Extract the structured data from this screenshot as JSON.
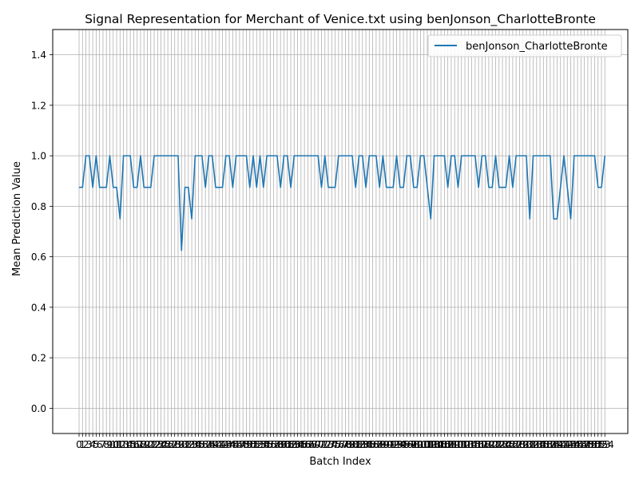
{
  "chart_data": {
    "type": "line",
    "title": "Signal Representation for Merchant of Venice.txt using benJonson_CharlotteBronte",
    "xlabel": "Batch Index",
    "ylabel": "Mean Prediction Value",
    "xlim": [
      0,
      153
    ],
    "ylim": [
      -0.1,
      1.5
    ],
    "yticks": [
      0.0,
      0.2,
      0.4,
      0.6,
      0.8,
      1.0,
      1.2,
      1.4
    ],
    "grid": true,
    "legend_position": "upper right",
    "series": [
      {
        "name": "benJonson_CharlotteBronte",
        "color": "#1f77b4",
        "values": [
          0.875,
          0.875,
          1.0,
          1.0,
          0.875,
          1.0,
          0.875,
          0.875,
          0.875,
          1.0,
          0.875,
          0.875,
          0.75,
          1.0,
          1.0,
          1.0,
          0.875,
          0.875,
          1.0,
          0.875,
          0.875,
          0.875,
          1.0,
          1.0,
          1.0,
          1.0,
          1.0,
          1.0,
          1.0,
          1.0,
          0.625,
          0.875,
          0.875,
          0.75,
          1.0,
          1.0,
          1.0,
          0.875,
          1.0,
          1.0,
          0.875,
          0.875,
          0.875,
          1.0,
          1.0,
          0.875,
          1.0,
          1.0,
          1.0,
          1.0,
          0.875,
          1.0,
          0.875,
          1.0,
          0.875,
          1.0,
          1.0,
          1.0,
          1.0,
          0.875,
          1.0,
          1.0,
          0.875,
          1.0,
          1.0,
          1.0,
          1.0,
          1.0,
          1.0,
          1.0,
          1.0,
          0.875,
          1.0,
          0.875,
          0.875,
          0.875,
          1.0,
          1.0,
          1.0,
          1.0,
          1.0,
          0.875,
          1.0,
          1.0,
          0.875,
          1.0,
          1.0,
          1.0,
          0.875,
          1.0,
          0.875,
          0.875,
          0.875,
          1.0,
          0.875,
          0.875,
          1.0,
          1.0,
          0.875,
          0.875,
          1.0,
          1.0,
          0.875,
          0.75,
          1.0,
          1.0,
          1.0,
          1.0,
          0.875,
          1.0,
          1.0,
          0.875,
          1.0,
          1.0,
          1.0,
          1.0,
          1.0,
          0.875,
          1.0,
          1.0,
          0.875,
          0.875,
          1.0,
          0.875,
          0.875,
          0.875,
          1.0,
          0.875,
          1.0,
          1.0,
          1.0,
          1.0,
          0.75,
          1.0,
          1.0,
          1.0,
          1.0,
          1.0,
          1.0,
          0.75,
          0.75,
          0.875,
          1.0,
          0.875,
          0.75,
          1.0,
          1.0,
          1.0,
          1.0,
          1.0,
          1.0,
          1.0,
          0.875,
          0.875,
          1.0
        ]
      }
    ]
  }
}
